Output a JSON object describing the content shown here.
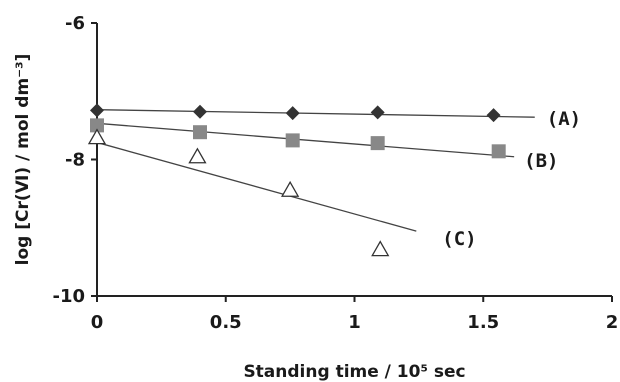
{
  "chart_data": {
    "type": "scatter",
    "xlabel": "Standing time / 10⁵ sec",
    "ylabel": "log [Cr(Ⅵ) / mol dm⁻³]",
    "xlim": [
      0,
      2
    ],
    "ylim": [
      -10,
      -6
    ],
    "x_ticks": [
      "0",
      "0.5",
      "1",
      "1.5",
      "2"
    ],
    "y_ticks": [
      "-6",
      "-8",
      "-10"
    ],
    "x_tick_values": [
      0,
      0.5,
      1,
      1.5,
      2
    ],
    "y_tick_values": [
      -6,
      -8,
      -10
    ],
    "grid": false,
    "series": [
      {
        "name": "(A)",
        "marker": "diamond",
        "color": "#333333",
        "points": [
          [
            0,
            -7.28
          ],
          [
            0.4,
            -7.3
          ],
          [
            0.76,
            -7.32
          ],
          [
            1.09,
            -7.31
          ],
          [
            1.54,
            -7.35
          ]
        ],
        "trendline": [
          [
            0,
            -7.27
          ],
          [
            1.7,
            -7.38
          ]
        ]
      },
      {
        "name": "(B)",
        "marker": "square",
        "color": "#888888",
        "points": [
          [
            0,
            -7.5
          ],
          [
            0.4,
            -7.6
          ],
          [
            0.76,
            -7.72
          ],
          [
            1.09,
            -7.76
          ],
          [
            1.56,
            -7.88
          ]
        ],
        "trendline": [
          [
            0,
            -7.47
          ],
          [
            1.62,
            -7.96
          ]
        ]
      },
      {
        "name": "(C)",
        "marker": "triangle-open",
        "color": "#333333",
        "points": [
          [
            0,
            -7.68
          ],
          [
            0.39,
            -7.96
          ],
          [
            0.75,
            -8.45
          ],
          [
            1.1,
            -9.32
          ]
        ],
        "trendline": [
          [
            0,
            -7.75
          ],
          [
            1.24,
            -9.05
          ]
        ]
      }
    ]
  }
}
